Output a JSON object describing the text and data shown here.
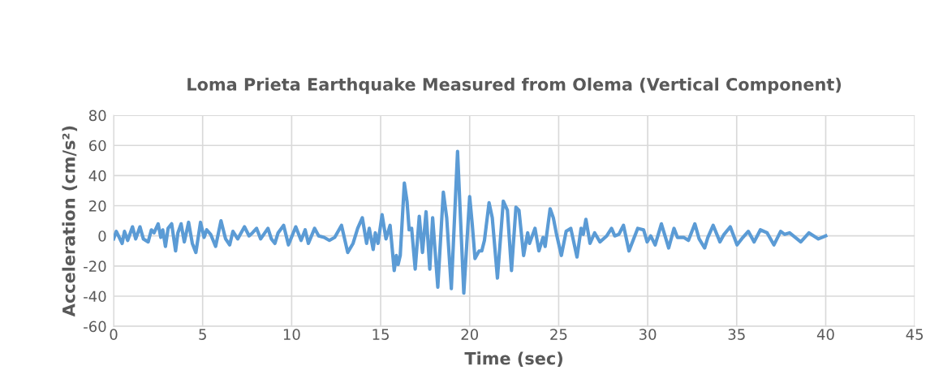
{
  "chart_data": {
    "type": "line",
    "title": "Loma Prieta Earthquake Measured from Olema (Vertical Component)",
    "xlabel": "Time (sec)",
    "ylabel": "Acceleration (cm/s²)",
    "xlim": [
      0,
      45
    ],
    "xticks": [
      0,
      5,
      10,
      15,
      20,
      25,
      30,
      35,
      40,
      45
    ],
    "ylim": [
      -60,
      80
    ],
    "yticks": [
      -60,
      -40,
      -20,
      0,
      20,
      40,
      60,
      80
    ],
    "grid": true,
    "marker": "none",
    "line_style": "solid",
    "series": [
      {
        "color": "#5b9bd5",
        "x": [
          0,
          0.15,
          0.48,
          0.61,
          0.79,
          1.06,
          1.24,
          1.48,
          1.67,
          1.94,
          2.12,
          2.27,
          2.5,
          2.65,
          2.76,
          2.91,
          3.06,
          3.26,
          3.48,
          3.61,
          3.79,
          3.97,
          4.21,
          4.42,
          4.62,
          4.88,
          5.08,
          5.23,
          5.45,
          5.73,
          6.03,
          6.29,
          6.52,
          6.7,
          6.97,
          7.35,
          7.61,
          7.8,
          8.03,
          8.26,
          8.67,
          8.86,
          9.06,
          9.24,
          9.55,
          9.82,
          10.23,
          10.53,
          10.76,
          10.94,
          11.29,
          11.52,
          11.82,
          12.12,
          12.42,
          12.8,
          13.15,
          13.45,
          13.71,
          13.97,
          14.21,
          14.36,
          14.58,
          14.7,
          14.85,
          15.08,
          15.3,
          15.53,
          15.76,
          15.88,
          15.98,
          16.1,
          16.33,
          16.48,
          16.6,
          16.74,
          16.94,
          17.17,
          17.35,
          17.55,
          17.76,
          17.92,
          18.21,
          18.52,
          18.71,
          18.97,
          19.32,
          19.67,
          20.0,
          20.15,
          20.3,
          20.53,
          20.68,
          20.83,
          21.09,
          21.27,
          21.56,
          21.89,
          22.12,
          22.35,
          22.6,
          22.77,
          23.03,
          23.26,
          23.36,
          23.67,
          23.89,
          24.12,
          24.24,
          24.52,
          24.7,
          24.88,
          25.15,
          25.42,
          25.68,
          26.03,
          26.26,
          26.38,
          26.53,
          26.76,
          27.02,
          27.32,
          27.7,
          27.97,
          28.15,
          28.38,
          28.64,
          28.95,
          29.44,
          29.77,
          29.97,
          30.17,
          30.42,
          30.77,
          31.18,
          31.48,
          31.67,
          32.02,
          32.29,
          32.65,
          32.89,
          33.2,
          33.38,
          33.68,
          34.06,
          34.29,
          34.64,
          35.02,
          35.35,
          35.65,
          35.98,
          36.33,
          36.71,
          37.09,
          37.47,
          37.7,
          37.97,
          38.6,
          39.06,
          39.59,
          40.0
        ],
        "values": [
          -2,
          3,
          -5,
          3,
          -3,
          6,
          -2,
          6,
          -2,
          -4,
          4,
          2,
          8,
          -1,
          4,
          -7,
          5,
          8,
          -10,
          2,
          8,
          -4,
          9,
          -5,
          -11,
          9,
          -1,
          4,
          1,
          -7,
          10,
          -2,
          -6,
          3,
          -2,
          6,
          0,
          2,
          5,
          -2,
          5,
          -2,
          -5,
          2,
          7,
          -6,
          6,
          -3,
          4,
          -5,
          5,
          0,
          -1,
          -3,
          -1,
          7,
          -11,
          -5,
          5,
          12,
          -5,
          5,
          -9,
          2,
          -5,
          14,
          -2,
          7,
          -23,
          -13,
          -19,
          -13,
          35,
          23,
          4,
          5,
          -22,
          13,
          -11,
          16,
          -22,
          12,
          -34,
          29,
          12,
          -35,
          56,
          -38,
          26,
          7,
          -15,
          -10,
          -10,
          -3,
          22,
          12,
          -28,
          23,
          17,
          -23,
          19,
          17,
          -13,
          2,
          -5,
          5,
          -10,
          -1,
          -7,
          18,
          12,
          1,
          -13,
          3,
          5,
          -14,
          5,
          1,
          11,
          -5,
          2,
          -4,
          0,
          5,
          0,
          1,
          7,
          -10,
          5,
          4,
          -4,
          0,
          -6,
          8,
          -8,
          5,
          -1,
          -1,
          -3,
          8,
          -2,
          -8,
          -1,
          7,
          -4,
          1,
          6,
          -6,
          -1,
          3,
          -4,
          4,
          2,
          -6,
          3,
          1,
          2,
          -4,
          2,
          -2,
          0
        ]
      }
    ]
  }
}
